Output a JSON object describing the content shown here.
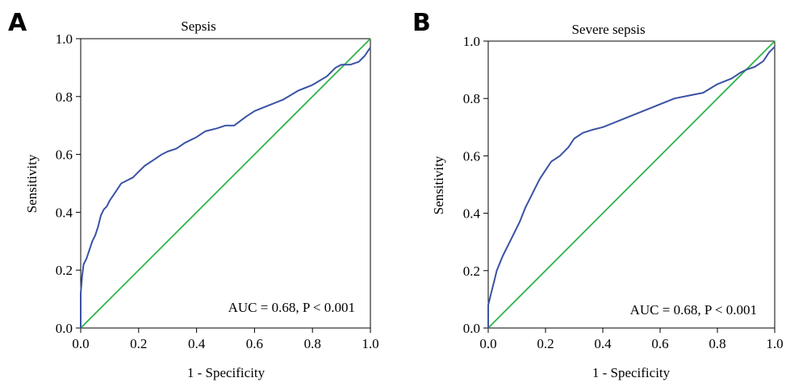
{
  "colors": {
    "roc": "#3a52a3",
    "reference": "#2fb34a",
    "axis": "#000000"
  },
  "chart_data": [
    {
      "panel": "A",
      "type": "line",
      "title": "Sepsis",
      "xlabel": "1 - Specificity",
      "ylabel": "Sensitivity",
      "xlim": [
        0,
        1
      ],
      "ylim": [
        0,
        1
      ],
      "xticks": [
        "0.0",
        "0.2",
        "0.4",
        "0.6",
        "0.8",
        "1.0"
      ],
      "yticks": [
        "0.0",
        "0.2",
        "0.4",
        "0.6",
        "0.8",
        "1.0"
      ],
      "annotation": "AUC = 0.68, P < 0.001",
      "series": [
        {
          "role": "roc",
          "x": [
            0,
            0,
            0.005,
            0.01,
            0.02,
            0.03,
            0.04,
            0.05,
            0.06,
            0.07,
            0.08,
            0.09,
            0.1,
            0.12,
            0.14,
            0.16,
            0.18,
            0.2,
            0.22,
            0.25,
            0.28,
            0.3,
            0.33,
            0.36,
            0.4,
            0.43,
            0.47,
            0.5,
            0.53,
            0.57,
            0.6,
            0.65,
            0.7,
            0.75,
            0.8,
            0.85,
            0.88,
            0.9,
            0.93,
            0.96,
            0.98,
            1.0
          ],
          "y": [
            0,
            0.12,
            0.18,
            0.22,
            0.24,
            0.27,
            0.3,
            0.32,
            0.35,
            0.39,
            0.41,
            0.42,
            0.44,
            0.47,
            0.5,
            0.51,
            0.52,
            0.54,
            0.56,
            0.58,
            0.6,
            0.61,
            0.62,
            0.64,
            0.66,
            0.68,
            0.69,
            0.7,
            0.7,
            0.73,
            0.75,
            0.77,
            0.79,
            0.82,
            0.84,
            0.87,
            0.9,
            0.91,
            0.91,
            0.92,
            0.94,
            0.97
          ]
        },
        {
          "role": "reference",
          "x": [
            0,
            1
          ],
          "y": [
            0,
            1
          ]
        }
      ]
    },
    {
      "panel": "B",
      "type": "line",
      "title": "Severe sepsis",
      "xlabel": "1 - Specificity",
      "ylabel": "Sensitivity",
      "xlim": [
        0,
        1
      ],
      "ylim": [
        0,
        1
      ],
      "xticks": [
        "0.0",
        "0.2",
        "0.4",
        "0.6",
        "0.8",
        "1.0"
      ],
      "yticks": [
        "0.0",
        "0.2",
        "0.4",
        "0.6",
        "0.8",
        "1.0"
      ],
      "annotation": "AUC = 0.68, P < 0.001",
      "series": [
        {
          "role": "roc",
          "x": [
            0,
            0,
            0.01,
            0.02,
            0.03,
            0.05,
            0.07,
            0.09,
            0.11,
            0.13,
            0.15,
            0.16,
            0.18,
            0.2,
            0.22,
            0.25,
            0.28,
            0.3,
            0.33,
            0.36,
            0.4,
            0.45,
            0.5,
            0.55,
            0.6,
            0.65,
            0.7,
            0.75,
            0.8,
            0.85,
            0.88,
            0.9,
            0.93,
            0.96,
            0.98,
            1.0
          ],
          "y": [
            0,
            0.08,
            0.12,
            0.16,
            0.2,
            0.25,
            0.29,
            0.33,
            0.37,
            0.42,
            0.46,
            0.48,
            0.52,
            0.55,
            0.58,
            0.6,
            0.63,
            0.66,
            0.68,
            0.69,
            0.7,
            0.72,
            0.74,
            0.76,
            0.78,
            0.8,
            0.81,
            0.82,
            0.85,
            0.87,
            0.89,
            0.9,
            0.91,
            0.93,
            0.96,
            0.98
          ]
        },
        {
          "role": "reference",
          "x": [
            0,
            1
          ],
          "y": [
            0,
            1
          ]
        }
      ]
    }
  ]
}
